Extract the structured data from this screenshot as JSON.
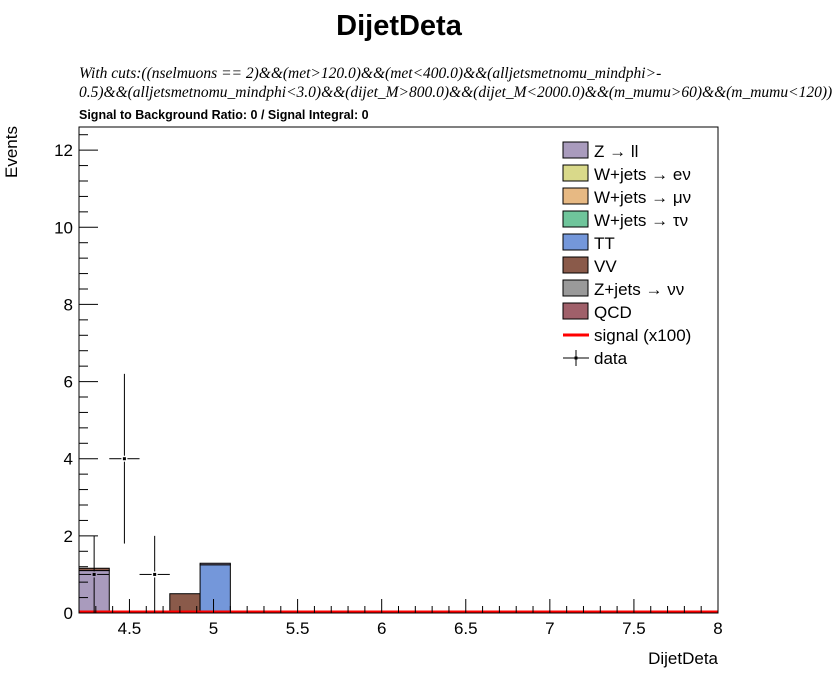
{
  "title": "DijetDeta",
  "cuts": {
    "line1": "With cuts:((nselmuons == 2)&&(met>120.0)&&(met<400.0)&&(alljetsmetnomu_mindphi>-",
    "line2": "0.5)&&(alljetsmetnomu_mindphi<3.0)&&(dijet_M>800.0)&&(dijet_M<2000.0)&&(m_mumu>60)&&(m_mumu<120))"
  },
  "ratio_text": "Signal to Background Ratio: 0 / Signal Integral: 0",
  "chart_data": {
    "type": "bar",
    "title": "DijetDeta",
    "xlabel": "DijetDeta",
    "ylabel": "Events",
    "xlim": [
      4.2,
      8.0
    ],
    "ylim": [
      0,
      12.6
    ],
    "bin_width": 0.18,
    "x_ticks": [
      4.5,
      5,
      5.5,
      6,
      6.5,
      7,
      7.5,
      8
    ],
    "x_tick_labels": [
      "4.5",
      "5",
      "5.5",
      "6",
      "6.5",
      "7",
      "7.5",
      "8"
    ],
    "y_ticks": [
      0,
      2,
      4,
      6,
      8,
      10,
      12
    ],
    "y_tick_labels": [
      "0",
      "2",
      "4",
      "6",
      "8",
      "10",
      "12"
    ],
    "legend_position": "top-right",
    "legend": [
      {
        "label": "Z → ll",
        "color": "#a99bbd",
        "kind": "box"
      },
      {
        "label": "W+jets → eν",
        "color": "#d9d98a",
        "kind": "box"
      },
      {
        "label": "W+jets → μν",
        "color": "#e7b983",
        "kind": "box"
      },
      {
        "label": "W+jets → τν",
        "color": "#6fc59b",
        "kind": "box"
      },
      {
        "label": "TT",
        "color": "#7497da",
        "kind": "box"
      },
      {
        "label": "VV",
        "color": "#8a5a4a",
        "kind": "box"
      },
      {
        "label": "Z+jets → νν",
        "color": "#9a9a9a",
        "kind": "box"
      },
      {
        "label": "QCD",
        "color": "#a0606a",
        "kind": "box"
      },
      {
        "label": "signal (x100)",
        "color": "#ff0000",
        "kind": "line"
      },
      {
        "label": "data",
        "color": "#000000",
        "kind": "marker"
      }
    ],
    "stack_bins": [
      {
        "x_low": 4.2,
        "x_high": 4.38,
        "components": [
          {
            "name": "Z → ll",
            "value": 1.1,
            "color": "#a99bbd"
          },
          {
            "name": "VV",
            "value": 0.06,
            "color": "#8a5a4a"
          }
        ]
      },
      {
        "x_low": 4.74,
        "x_high": 4.92,
        "components": [
          {
            "name": "VV",
            "value": 0.5,
            "color": "#8a5a4a"
          }
        ]
      },
      {
        "x_low": 4.92,
        "x_high": 5.1,
        "components": [
          {
            "name": "TT",
            "value": 1.25,
            "color": "#7497da"
          },
          {
            "name": "Z → ll",
            "value": 0.04,
            "color": "#a99bbd"
          }
        ]
      }
    ],
    "data_points": [
      {
        "x": 4.29,
        "y": 1,
        "y_err_low": 1,
        "y_err_high": 1
      },
      {
        "x": 4.47,
        "y": 4,
        "y_err_low": 2.2,
        "y_err_high": 2.2
      },
      {
        "x": 4.65,
        "y": 1,
        "y_err_low": 1,
        "y_err_high": 1
      }
    ],
    "signal": {
      "name": "signal (x100)",
      "value": 0,
      "color": "#ff0000"
    }
  }
}
